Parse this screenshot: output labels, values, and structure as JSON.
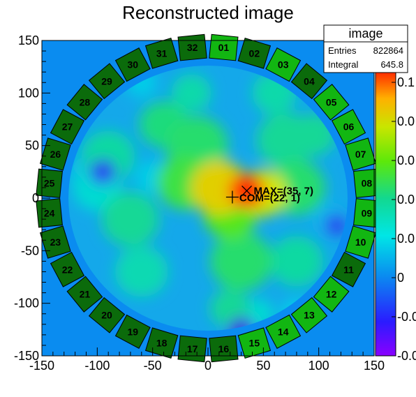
{
  "chart_data": {
    "type": "heatmap",
    "title": "Reconstructed image",
    "xlabel": "",
    "ylabel": "",
    "xlim": [
      -150,
      150
    ],
    "ylim": [
      -150,
      150
    ],
    "x_ticks": [
      "-150",
      "-100",
      "-50",
      "0",
      "50",
      "100",
      "150"
    ],
    "y_ticks": [
      "150",
      "100",
      "50",
      "0",
      "-50",
      "-100",
      "-150"
    ],
    "colorbar_labels": [
      "0.1",
      "0.0",
      "0.0",
      "0.0",
      "0.0",
      "0",
      "-0.0",
      "-0.0"
    ],
    "stats": {
      "name": "image",
      "entries_label": "Entries",
      "entries_value": "822864",
      "integral_label": "Integral",
      "integral_value": "645.8"
    },
    "annotations": {
      "max_label": "MAX=(35, 7)",
      "max_point": [
        35,
        7
      ],
      "com_label": "COM=(22, 1)",
      "com_point": [
        22,
        1
      ]
    },
    "detectors": [
      "01",
      "02",
      "03",
      "04",
      "05",
      "06",
      "07",
      "08",
      "09",
      "10",
      "11",
      "12",
      "13",
      "14",
      "15",
      "16",
      "17",
      "18",
      "19",
      "20",
      "21",
      "22",
      "23",
      "24",
      "25",
      "26",
      "27",
      "28",
      "29",
      "30",
      "31",
      "32"
    ],
    "highlighted_detectors": [
      "01",
      "03",
      "05",
      "06",
      "07",
      "08",
      "09",
      "10",
      "12",
      "13",
      "14",
      "15"
    ],
    "background_color": "#0a8cf0",
    "detector_color_dark": "#0b6b0b",
    "detector_color_bright": "#12b612",
    "blobs": [
      {
        "x": 35,
        "y": 7,
        "r": 16,
        "level": 1.0
      },
      {
        "x": 10,
        "y": 10,
        "r": 26,
        "level": 0.82
      },
      {
        "x": 50,
        "y": 5,
        "r": 22,
        "level": 0.78
      },
      {
        "x": 20,
        "y": -15,
        "r": 24,
        "level": 0.6
      },
      {
        "x": -20,
        "y": 15,
        "r": 26,
        "level": 0.55
      },
      {
        "x": -10,
        "y": 50,
        "r": 28,
        "level": 0.5
      },
      {
        "x": -40,
        "y": 70,
        "r": 22,
        "level": 0.48
      },
      {
        "x": 70,
        "y": 55,
        "r": 26,
        "level": 0.45
      },
      {
        "x": 80,
        "y": 10,
        "r": 26,
        "level": 0.5
      },
      {
        "x": 95,
        "y": 60,
        "r": 20,
        "level": 0.45
      },
      {
        "x": 30,
        "y": -60,
        "r": 28,
        "level": 0.5
      },
      {
        "x": 20,
        "y": -105,
        "r": 18,
        "level": 0.45
      },
      {
        "x": -70,
        "y": -20,
        "r": 26,
        "level": 0.45
      },
      {
        "x": -90,
        "y": 40,
        "r": 24,
        "level": 0.42
      },
      {
        "x": -60,
        "y": -70,
        "r": 24,
        "level": 0.38
      },
      {
        "x": 80,
        "y": -60,
        "r": 24,
        "level": 0.42
      },
      {
        "x": 60,
        "y": 100,
        "r": 20,
        "level": 0.4
      },
      {
        "x": -15,
        "y": 100,
        "r": 18,
        "level": 0.4
      },
      {
        "x": -100,
        "y": 10,
        "r": 22,
        "level": 0.3
      },
      {
        "x": 45,
        "y": -110,
        "r": 14,
        "level": 0.3
      },
      {
        "x": -110,
        "y": 25,
        "r": 14,
        "level": 0.12
      },
      {
        "x": 110,
        "y": -20,
        "r": 14,
        "level": 0.08
      },
      {
        "x": 30,
        "y": -120,
        "r": 14,
        "level": 0.12
      },
      {
        "x": -60,
        "y": 110,
        "r": 14,
        "level": 0.18
      },
      {
        "x": -50,
        "y": 20,
        "r": 16,
        "level": 0.18
      },
      {
        "x": 80,
        "y": -110,
        "r": 14,
        "level": 0.2
      }
    ]
  }
}
